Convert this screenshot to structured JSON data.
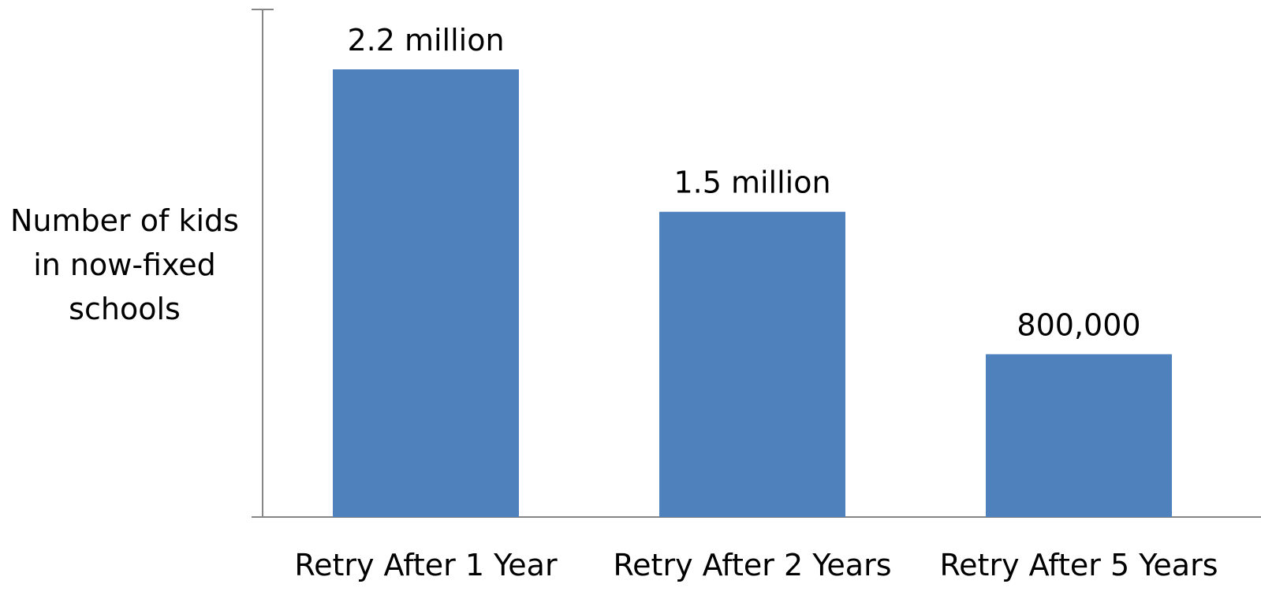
{
  "chart_data": {
    "type": "bar",
    "categories": [
      "Retry After 1 Year",
      "Retry After 2 Years",
      "Retry After 5 Years"
    ],
    "values": [
      2200000,
      1500000,
      800000
    ],
    "data_labels": [
      "2.2 million",
      "1.5 million",
      "800,000"
    ],
    "ylabel_lines": [
      "Number of kids",
      "in now-fixed",
      "schools"
    ],
    "title": "",
    "xlabel": "",
    "ylim": [
      0,
      2500000
    ],
    "bar_color": "#4f81bd",
    "axis_color": "#868686",
    "grid": false,
    "legend": "none",
    "y_tick_labels_shown": false
  }
}
